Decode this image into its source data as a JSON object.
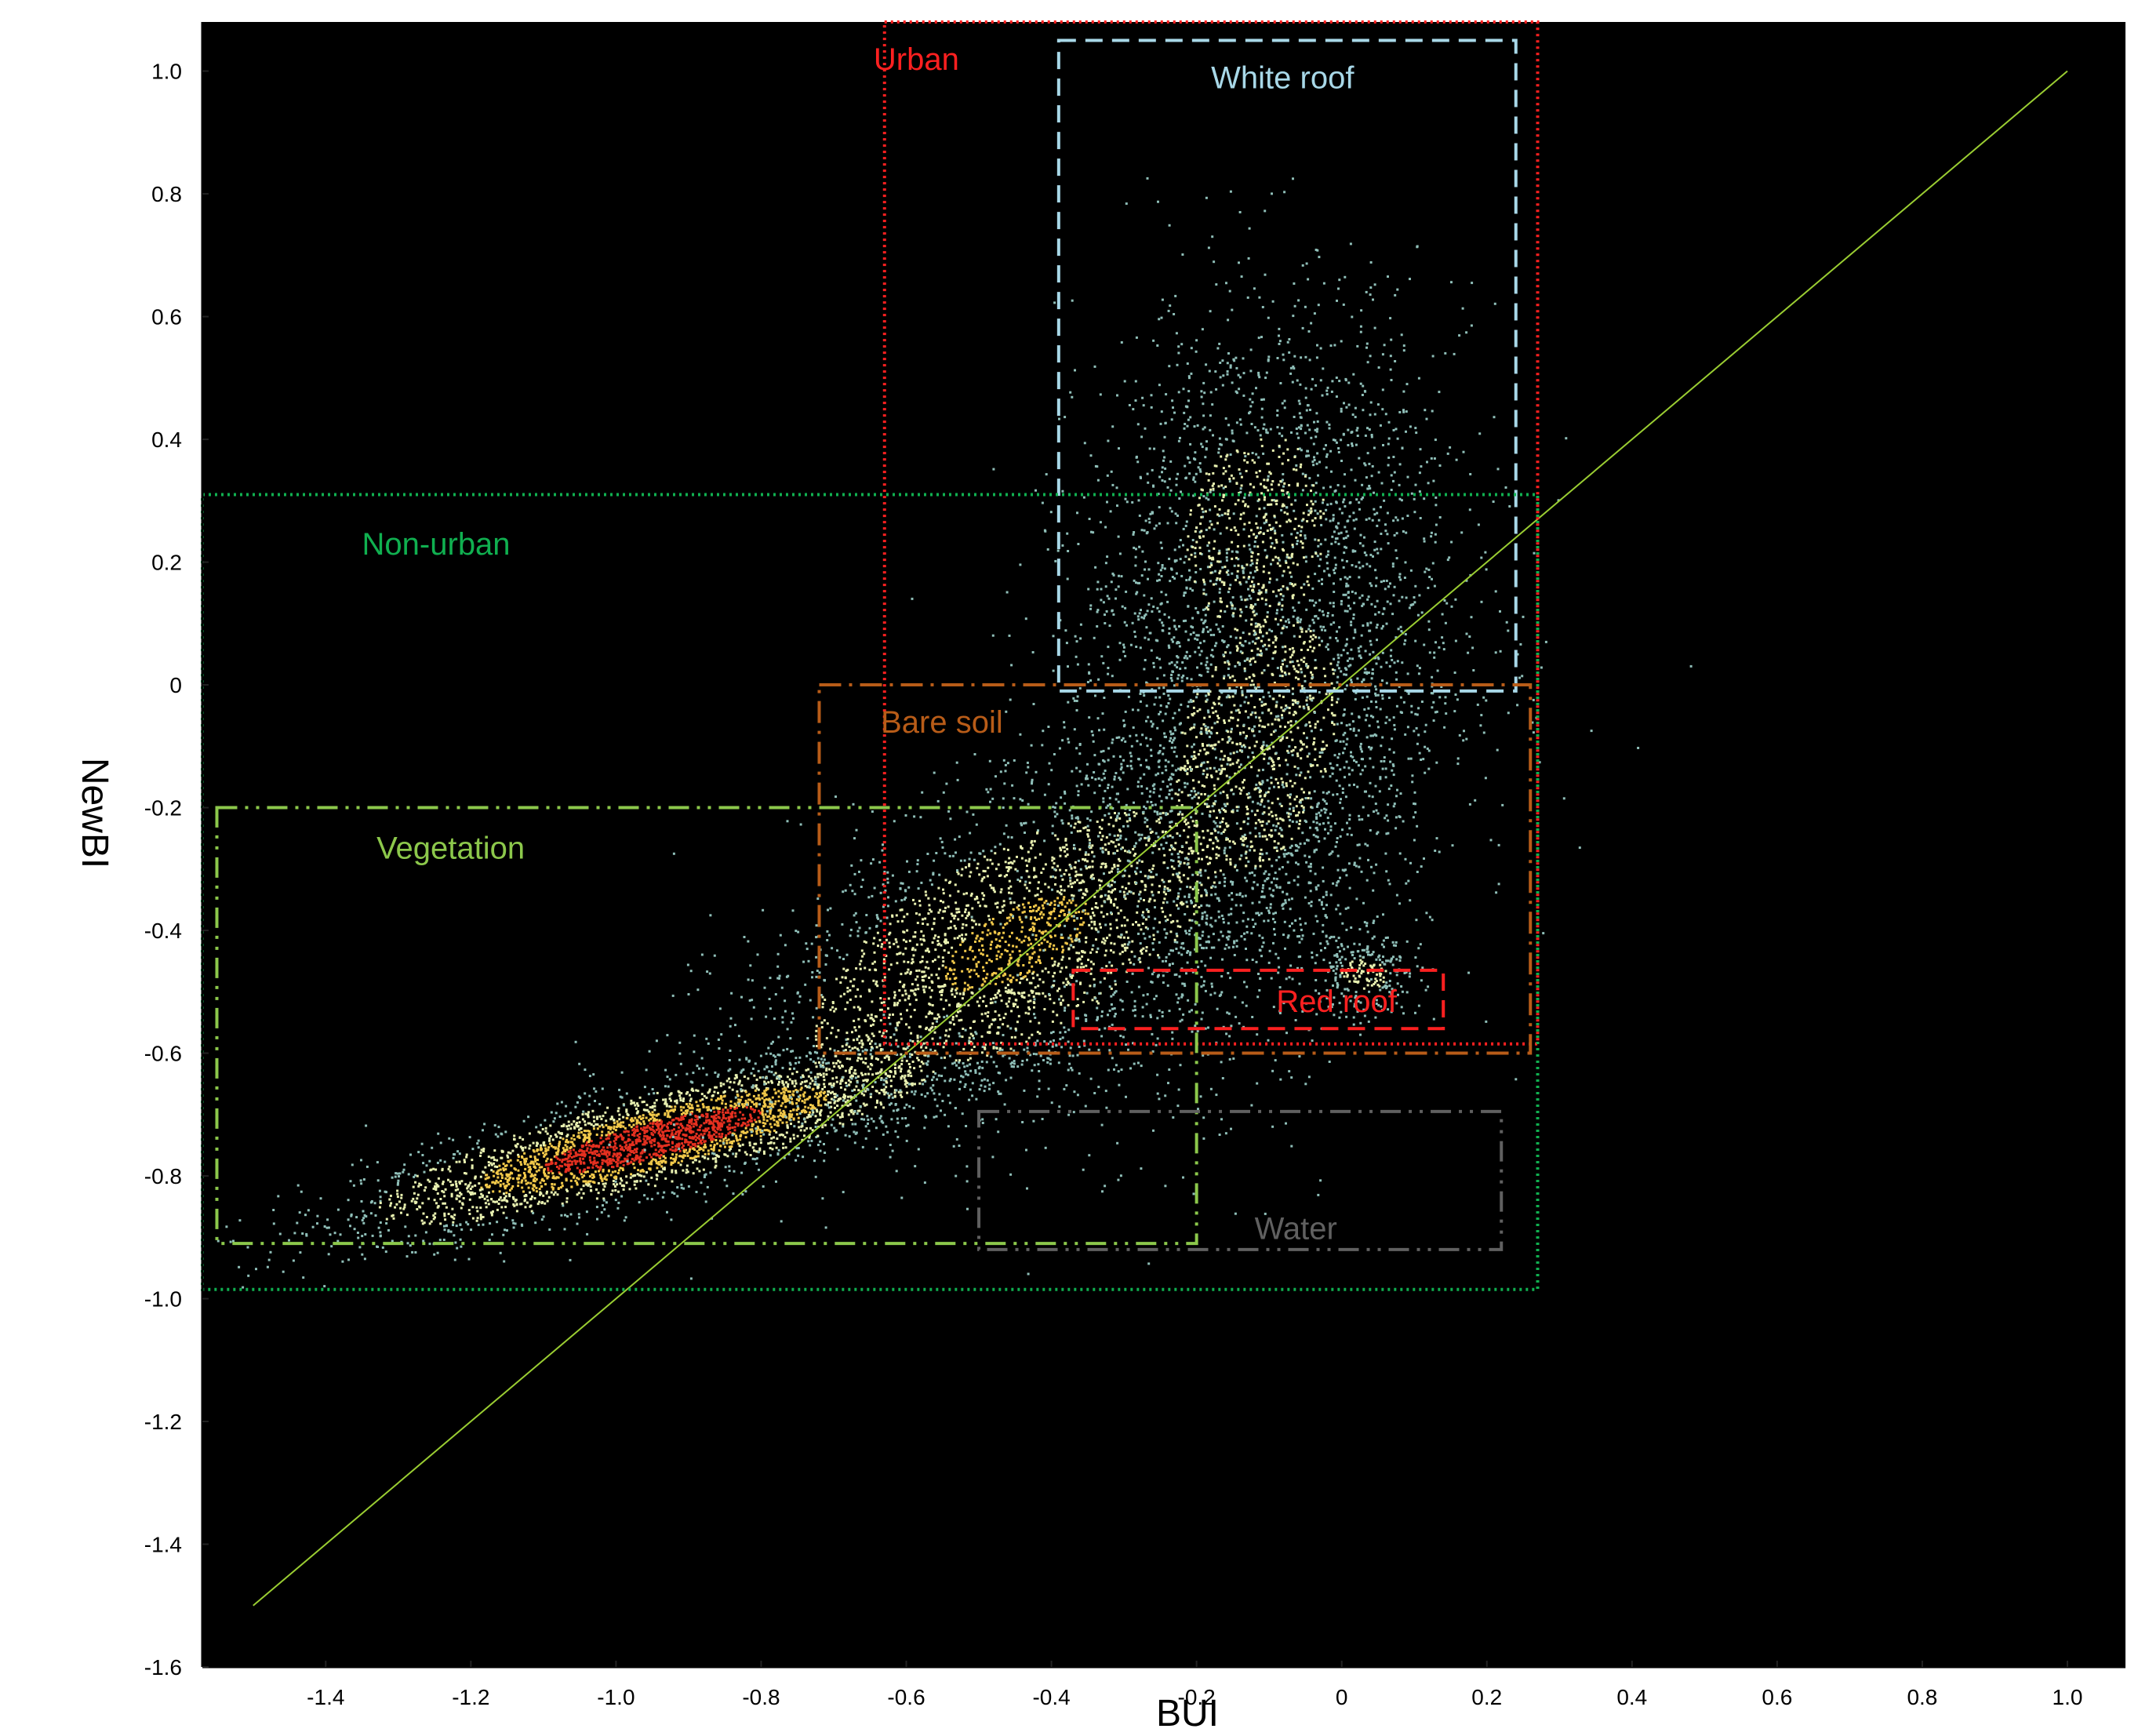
{
  "chart_data": {
    "type": "scatter",
    "title": "",
    "xlabel": "BUI",
    "ylabel": "NewBI",
    "xlim": [
      -1.57,
      1.08
    ],
    "ylim": [
      -1.6,
      1.08
    ],
    "grid": false,
    "background": "#000000",
    "x_ticks": [
      "-1.4",
      "-1.2",
      "-1.0",
      "-0.8",
      "-0.6",
      "-0.4",
      "-0.2",
      "0",
      "0.2",
      "0.4",
      "0.6",
      "0.8",
      "1.0"
    ],
    "x_tick_values": [
      -1.4,
      -1.2,
      -1.0,
      -0.8,
      -0.6,
      -0.4,
      -0.2,
      0,
      0.2,
      0.4,
      0.6,
      0.8,
      1.0
    ],
    "y_ticks": [
      "1.0",
      "0.8",
      "0.6",
      "0.4",
      "0.2",
      "0",
      "-0.2",
      "-0.4",
      "-0.6",
      "-0.8",
      "-1.0",
      "-1.2",
      "-1.4",
      "-1.6"
    ],
    "y_tick_values": [
      1.0,
      0.8,
      0.6,
      0.4,
      0.2,
      0,
      -0.2,
      -0.4,
      -0.6,
      -0.8,
      -1.0,
      -1.2,
      -1.4,
      -1.6
    ],
    "reference_line": {
      "x": [
        -1.5,
        1.0
      ],
      "y": [
        -1.5,
        1.0
      ],
      "color": "#9acd32"
    },
    "point_clusters": [
      {
        "x_mean": -0.95,
        "y_mean": -0.74,
        "x_sd": 0.2,
        "y_sd": 0.04,
        "slope": 0.3,
        "count": 3200
      },
      {
        "x_mean": -0.45,
        "y_mean": -0.42,
        "x_sd": 0.2,
        "y_sd": 0.12,
        "slope": 0.5,
        "count": 2800
      },
      {
        "x_mean": -0.12,
        "y_mean": -0.1,
        "x_sd": 0.14,
        "y_sd": 0.25,
        "slope": 0.6,
        "count": 2600
      },
      {
        "x_mean": -0.12,
        "y_mean": 0.25,
        "x_sd": 0.12,
        "y_sd": 0.2,
        "slope": 0.2,
        "count": 1400
      },
      {
        "x_mean": 0.03,
        "y_mean": -0.47,
        "x_sd": 0.04,
        "y_sd": 0.035,
        "slope": 0,
        "count": 260
      }
    ],
    "density_colors": [
      "#8fbfb8",
      "#e8f0b0",
      "#f2c94a",
      "#e53020"
    ],
    "regions": [
      {
        "name": "Urban",
        "x": [
          -0.63,
          0.27
        ],
        "y": [
          -0.585,
          1.08
        ],
        "color": "#ff2020",
        "style": "dotted",
        "label_at": [
          -0.645,
          1.02
        ]
      },
      {
        "name": "White roof",
        "x": [
          -0.39,
          0.24
        ],
        "y": [
          -0.01,
          1.05
        ],
        "color": "#a8d8e8",
        "style": "dashed",
        "label_at": [
          -0.18,
          0.99
        ]
      },
      {
        "name": "Non-urban",
        "x": [
          -1.57,
          0.27
        ],
        "y": [
          -0.985,
          0.31
        ],
        "color": "#10b050",
        "style": "dotted",
        "label_at": [
          -1.35,
          0.23
        ]
      },
      {
        "name": "Bare soil",
        "x": [
          -0.72,
          0.26
        ],
        "y": [
          -0.6,
          0.0
        ],
        "color": "#b85c18",
        "style": "dashdot",
        "label_at": [
          -0.635,
          -0.06
        ]
      },
      {
        "name": "Vegetation",
        "x": [
          -1.55,
          -0.2
        ],
        "y": [
          -0.91,
          -0.2
        ],
        "color": "#8cc84b",
        "style": "dashdotdot",
        "label_at": [
          -1.33,
          -0.265
        ]
      },
      {
        "name": "Red roof",
        "x": [
          -0.37,
          0.14
        ],
        "y": [
          -0.56,
          -0.465
        ],
        "color": "#ff2020",
        "style": "dashed",
        "label_at": [
          -0.09,
          -0.515
        ]
      },
      {
        "name": "Water",
        "x": [
          -0.5,
          0.22
        ],
        "y": [
          -0.92,
          -0.695
        ],
        "color": "#606060",
        "style": "dashdotdot",
        "label_at": [
          -0.12,
          -0.885
        ]
      }
    ]
  }
}
